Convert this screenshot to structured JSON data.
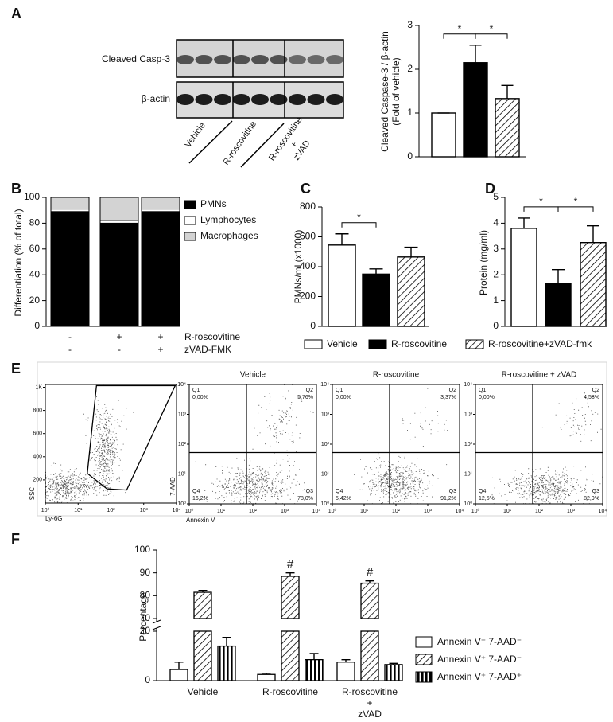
{
  "panel_labels": [
    "A",
    "B",
    "C",
    "D",
    "E",
    "F"
  ],
  "blot": {
    "rows": [
      "Cleaved Casp-3",
      "β-actin"
    ],
    "lanes": [
      "Vehicle",
      "R-roscovitine",
      "R-roscovitine\n+\nzVAD"
    ]
  },
  "chart_data": [
    {
      "type": "bar",
      "y_label": "Cleaved Caspase-3 / β-actin\n(Fold of vehicle)",
      "values": [
        1,
        2.15,
        1.33
      ],
      "errors": [
        0,
        0.4,
        0.3
      ],
      "colors": [
        "#ffffff",
        "#000000",
        "hatch"
      ],
      "ylim": [
        0,
        3
      ],
      "yticks": [
        0,
        1,
        2,
        3
      ],
      "annotations": [
        {
          "text": "*",
          "between": [
            0,
            1
          ]
        },
        {
          "text": "*",
          "between": [
            1,
            2
          ]
        }
      ]
    },
    {
      "type": "stacked_bar",
      "y_label": "Differentiation (% of total)",
      "series": [
        {
          "name": "PMNs",
          "color": "#000000",
          "values": [
            89,
            80,
            89
          ]
        },
        {
          "name": "Lymphocytes",
          "color": "#ffffff",
          "values": [
            2,
            2,
            2
          ]
        },
        {
          "name": "Macrophages",
          "color": "#d3d3d3",
          "values": [
            9,
            18,
            9
          ]
        }
      ],
      "conditions": [
        {
          "label": "R-roscovitine",
          "marks": [
            "-",
            "+",
            "+"
          ]
        },
        {
          "label": "zVAD-FMK",
          "marks": [
            "-",
            "-",
            "+"
          ]
        }
      ],
      "ylim": [
        0,
        100
      ],
      "yticks": [
        0,
        20,
        40,
        60,
        80,
        100
      ],
      "legend": "right"
    },
    {
      "type": "bar",
      "y_label": "PMNs/ml (x1000)",
      "categories": [
        "Vehicle",
        "R-roscovitine",
        "R-roscovitine+zVAD-fmk"
      ],
      "values": [
        545,
        350,
        465
      ],
      "errors": [
        75,
        35,
        65
      ],
      "colors": [
        "#ffffff",
        "#000000",
        "hatch"
      ],
      "ylim": [
        0,
        800
      ],
      "yticks": [
        0,
        200,
        400,
        600,
        800
      ],
      "annotations": [
        {
          "text": "*",
          "between": [
            0,
            1
          ]
        }
      ],
      "legend": "bottom"
    },
    {
      "type": "bar",
      "y_label": "Protein (mg/ml)",
      "values": [
        3.8,
        1.65,
        3.25
      ],
      "errors": [
        0.4,
        0.55,
        0.65
      ],
      "colors": [
        "#ffffff",
        "#000000",
        "hatch"
      ],
      "ylim": [
        0,
        5
      ],
      "yticks": [
        0,
        1,
        2,
        3,
        4,
        5
      ],
      "annotations": [
        {
          "text": "*",
          "between": [
            0,
            1
          ]
        },
        {
          "text": "*",
          "between": [
            1,
            2
          ]
        }
      ]
    },
    {
      "type": "broken_bar",
      "y_label": "Percentage",
      "categories": [
        "Vehicle",
        "R-roscovitine",
        "R-roscovitine\n+\nzVAD"
      ],
      "series": [
        {
          "name": "Annexin V⁻ 7-AAD⁻",
          "color": "#ffffff",
          "values": [
            4.5,
            2.5,
            7.5
          ],
          "errors": [
            3,
            0.5,
            1
          ]
        },
        {
          "name": "Annexin V⁺ 7-AAD⁻",
          "color": "hatch",
          "values": [
            81.5,
            88.5,
            85.5
          ],
          "errors": [
            0.8,
            1.5,
            1
          ]
        },
        {
          "name": "Annexin V⁺ 7-AAD⁺",
          "color": "vstripe",
          "values": [
            14,
            8.5,
            6.5
          ],
          "errors": [
            3.5,
            2.5,
            0.5
          ]
        }
      ],
      "ylim": [
        0,
        100
      ],
      "axis_break": [
        20,
        70
      ],
      "yticks": [
        0,
        20,
        70,
        80,
        90,
        100
      ],
      "annotations": [
        {
          "text": "#",
          "series": 1,
          "index": 1
        },
        {
          "text": "#",
          "series": 1,
          "index": 2
        }
      ],
      "legend": "right"
    }
  ],
  "flow": {
    "gate_plot": {
      "y_label": "SSC",
      "x_label": "Ly-6G",
      "xscale": "log",
      "yscale": "linear",
      "xlim": [
        1,
        10000
      ],
      "ylim": [
        0,
        1024
      ],
      "xticks": [
        {
          "value": 1,
          "label": "10⁰"
        },
        {
          "value": 10,
          "label": "10¹"
        },
        {
          "value": 100,
          "label": "10²"
        },
        {
          "value": 1000,
          "label": "10³"
        },
        {
          "value": 10000,
          "label": "10⁴"
        }
      ],
      "yticks": [
        200,
        400,
        600,
        800,
        {
          "value": 1000,
          "label": "1K"
        }
      ]
    },
    "y_label": "7-AAD",
    "x_label": "Annexin V",
    "xscale": "log",
    "yscale": "log",
    "xlim": [
      1,
      10000
    ],
    "ylim": [
      1,
      10000
    ],
    "xticks": [
      {
        "value": 1,
        "label": "10⁰"
      },
      {
        "value": 10,
        "label": "10¹"
      },
      {
        "value": 100,
        "label": "10²"
      },
      {
        "value": 1000,
        "label": "10³"
      },
      {
        "value": 10000,
        "label": "10⁴"
      }
    ],
    "yticks": [
      {
        "value": 1,
        "label": "10⁰"
      },
      {
        "value": 10,
        "label": "10¹"
      },
      {
        "value": 100,
        "label": "10²"
      },
      {
        "value": 1000,
        "label": "10³"
      },
      {
        "value": 10000,
        "label": "10⁴"
      }
    ],
    "plots": [
      {
        "title": "Vehicle",
        "quadrants": [
          {
            "name": "Q1",
            "value": "0,00%"
          },
          {
            "name": "Q2",
            "value": "5,76%"
          },
          {
            "name": "Q4",
            "value": "16,2%"
          },
          {
            "name": "Q3",
            "value": "78,0%"
          }
        ]
      },
      {
        "title": "R-roscovitine",
        "quadrants": [
          {
            "name": "Q1",
            "value": "0,00%"
          },
          {
            "name": "Q2",
            "value": "3,37%"
          },
          {
            "name": "Q4",
            "value": "5,42%"
          },
          {
            "name": "Q3",
            "value": "91,2%"
          }
        ]
      },
      {
        "title": "R-roscovitine + zVAD",
        "quadrants": [
          {
            "name": "Q1",
            "value": "0,00%"
          },
          {
            "name": "Q2",
            "value": "4,58%"
          },
          {
            "name": "Q4",
            "value": "12,5%"
          },
          {
            "name": "Q3",
            "value": "82,9%"
          }
        ]
      }
    ]
  }
}
